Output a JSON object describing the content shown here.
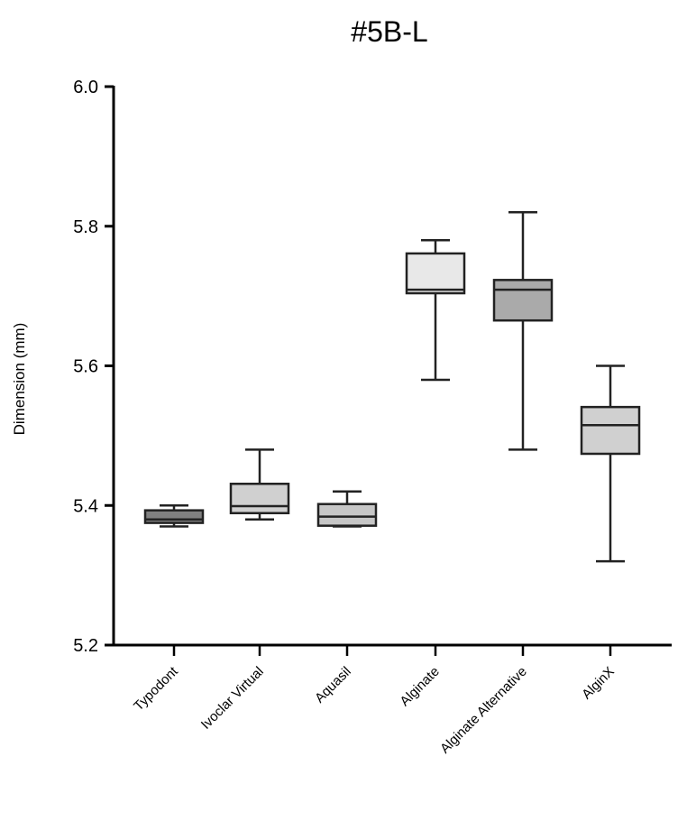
{
  "chart_data": {
    "type": "box",
    "title": "#5B-L",
    "xlabel": "",
    "ylabel": "Dimension (mm)",
    "ylim": [
      5.2,
      6.0
    ],
    "yticks": [
      "5.2",
      "5.4",
      "5.6",
      "5.8",
      "6.0"
    ],
    "grid": false,
    "categories": [
      "Typodont",
      "Ivoclar Virtual",
      "Aquasil",
      "Alginate",
      "Alginate Alternative",
      "AlginX"
    ],
    "boxes": [
      {
        "min": 5.37,
        "q1": 5.375,
        "median": 5.38,
        "q3": 5.393,
        "max": 5.4,
        "color": "#808080"
      },
      {
        "min": 5.38,
        "q1": 5.389,
        "median": 5.399,
        "q3": 5.431,
        "max": 5.48,
        "color": "#d0d0d0"
      },
      {
        "min": 5.37,
        "q1": 5.371,
        "median": 5.384,
        "q3": 5.402,
        "max": 5.42,
        "color": "#c6c6c6"
      },
      {
        "min": 5.58,
        "q1": 5.704,
        "median": 5.709,
        "q3": 5.761,
        "max": 5.78,
        "color": "#e8e8e8"
      },
      {
        "min": 5.48,
        "q1": 5.665,
        "median": 5.709,
        "q3": 5.723,
        "max": 5.82,
        "color": "#aaaaaa"
      },
      {
        "min": 5.32,
        "q1": 5.474,
        "median": 5.515,
        "q3": 5.541,
        "max": 5.6,
        "color": "#d0d0d0"
      }
    ]
  }
}
